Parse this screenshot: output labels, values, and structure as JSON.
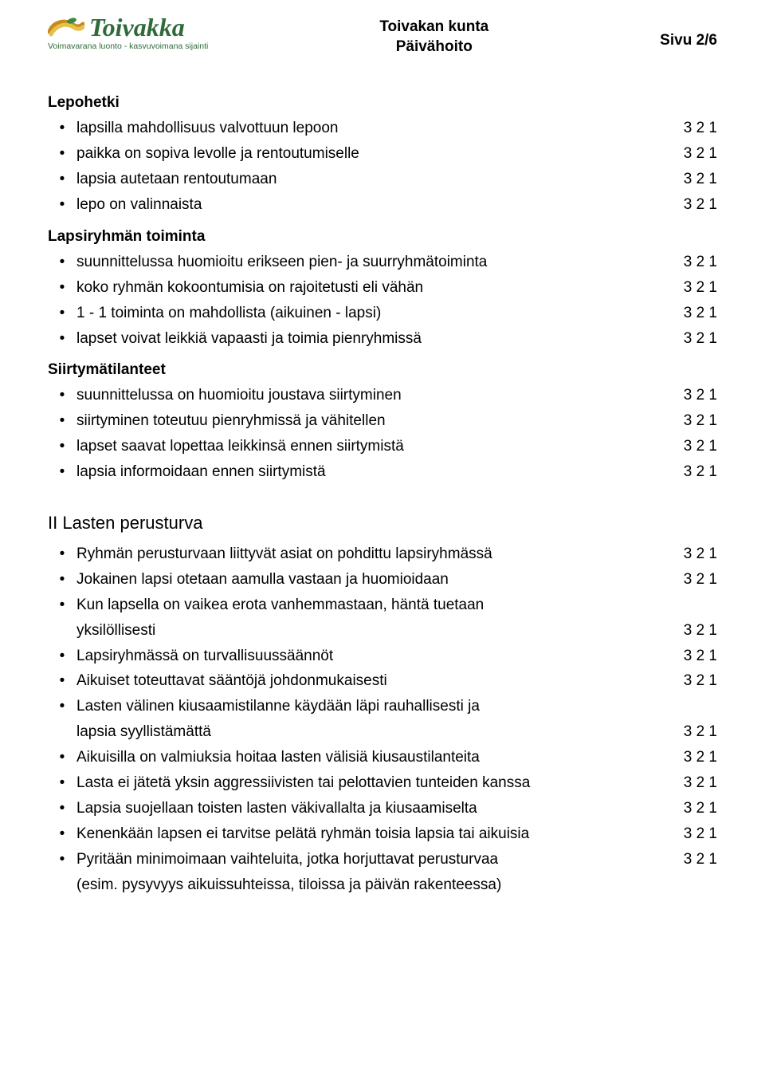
{
  "header": {
    "logo_name": "Toivakka",
    "logo_tagline": "Voimavarana luonto - kasvuvoimana sijainti",
    "center_line1": "Toivakan kunta",
    "center_line2": "Päivähoito",
    "page_indicator": "Sivu 2/6",
    "logo_colors": {
      "swirl_dark": "#c88a1f",
      "swirl_light": "#e7c04a",
      "leaf": "#3a8a3d",
      "text": "#2f6b3a"
    }
  },
  "score_label": "3 2 1",
  "sections1": [
    {
      "title": "Lepohetki",
      "items": [
        {
          "text": "lapsilla mahdollisuus valvottuun lepoon",
          "score": "3 2 1"
        },
        {
          "text": "paikka on sopiva levolle ja rentoutumiselle",
          "score": "3 2 1"
        },
        {
          "text": "lapsia autetaan rentoutumaan",
          "score": "3 2 1"
        },
        {
          "text": "lepo on valinnaista",
          "score": "3 2 1"
        }
      ]
    },
    {
      "title": "Lapsiryhmän toiminta",
      "items": [
        {
          "text": "suunnittelussa huomioitu erikseen pien- ja suurryhmätoiminta",
          "score": "3 2 1"
        },
        {
          "text": "koko ryhmän kokoontumisia on rajoitetusti eli vähän",
          "score": "3 2 1"
        },
        {
          "text": "1 - 1 toiminta on mahdollista (aikuinen - lapsi)",
          "score": "3 2 1"
        },
        {
          "text": "lapset voivat leikkiä vapaasti ja toimia pienryhmissä",
          "score": "3 2 1"
        }
      ]
    },
    {
      "title": "Siirtymätilanteet",
      "items": [
        {
          "text": "suunnittelussa on huomioitu joustava siirtyminen",
          "score": "3 2 1"
        },
        {
          "text": "siirtyminen toteutuu pienryhmissä ja vähitellen",
          "score": "3 2 1"
        },
        {
          "text": "lapset saavat lopettaa leikkinsä ennen siirtymistä",
          "score": "3 2 1"
        },
        {
          "text": "lapsia informoidaan ennen siirtymistä",
          "score": "3 2 1"
        }
      ]
    }
  ],
  "heading2": "II Lasten perusturva",
  "section2_items": [
    {
      "type": "single",
      "text": "Ryhmän perusturvaan liittyvät asiat on pohdittu lapsiryhmässä",
      "score": "3 2 1"
    },
    {
      "type": "single",
      "text": "Jokainen lapsi otetaan aamulla vastaan ja huomioidaan",
      "score": "3 2 1"
    },
    {
      "type": "wrap",
      "text": "Kun lapsella on vaikea erota vanhemmastaan, häntä tuetaan",
      "cont": "yksilöllisesti",
      "score": "3 2 1"
    },
    {
      "type": "single",
      "text": "Lapsiryhmässä on turvallisuussäännöt",
      "score": "3 2 1"
    },
    {
      "type": "single",
      "text": "Aikuiset toteuttavat sääntöjä johdonmukaisesti",
      "score": "3 2 1"
    },
    {
      "type": "wrap",
      "text": "Lasten välinen kiusaamistilanne käydään läpi rauhallisesti ja",
      "cont": "lapsia syyllistämättä",
      "score": "3 2 1"
    },
    {
      "type": "single",
      "text": "Aikuisilla on valmiuksia hoitaa lasten välisiä kiusaustilanteita",
      "score": "3 2 1"
    },
    {
      "type": "single",
      "text": "Lasta ei jätetä yksin aggressiivisten tai pelottavien tunteiden kanssa",
      "score": "3 2 1"
    },
    {
      "type": "single",
      "text": "Lapsia suojellaan toisten lasten väkivallalta ja kiusaamiselta",
      "score": "3 2 1"
    },
    {
      "type": "single",
      "text": "Kenenkään lapsen ei tarvitse pelätä ryhmän toisia lapsia tai aikuisia",
      "score": "3 2 1"
    },
    {
      "type": "wrap2",
      "text": "Pyritään minimoimaan vaihteluita, jotka horjuttavat perusturvaa",
      "score": "3 2 1",
      "cont": "(esim. pysyvyys aikuissuhteissa, tiloissa ja päivän rakenteessa)"
    }
  ]
}
